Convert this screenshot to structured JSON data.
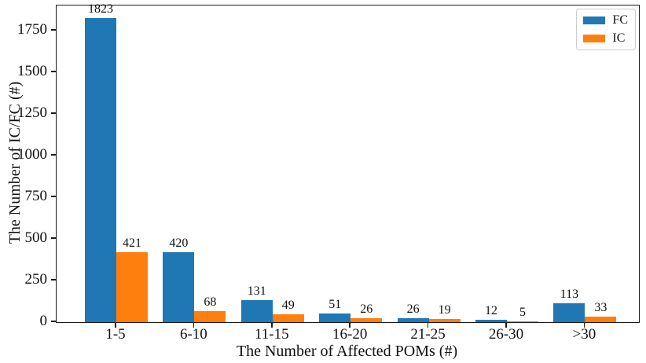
{
  "chart_data": {
    "type": "bar",
    "title": "",
    "xlabel": "The Number of Affected POMs (#)",
    "ylabel": "The Number of IC/FC (#)",
    "categories": [
      "1-5",
      "6-10",
      "11-15",
      "16-20",
      "21-25",
      "26-30",
      ">30"
    ],
    "series": [
      {
        "name": "FC",
        "color": "#1f77b4",
        "values": [
          1823,
          420,
          131,
          51,
          26,
          12,
          113
        ]
      },
      {
        "name": "IC",
        "color": "#ff7f0e",
        "values": [
          421,
          68,
          49,
          26,
          19,
          5,
          33
        ]
      }
    ],
    "bar_labels": true,
    "yticks": [
      0,
      250,
      500,
      750,
      1000,
      1250,
      1500,
      1750
    ],
    "ylim": [
      0,
      1900
    ],
    "grid": false,
    "legend_position": "upper right",
    "frame": "boxed"
  }
}
